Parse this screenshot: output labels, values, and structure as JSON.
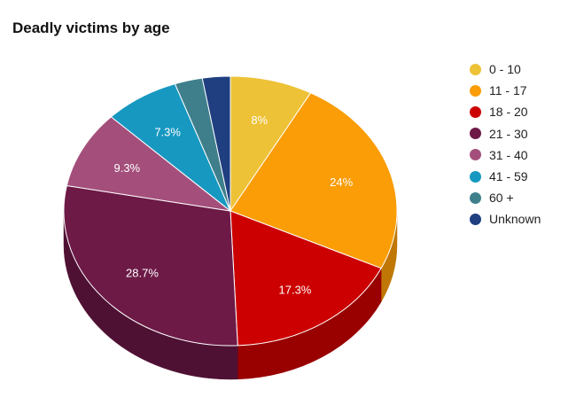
{
  "chart_data": {
    "type": "pie",
    "title": "Deadly victims by age",
    "is_3d": true,
    "legend_position": "right",
    "categories": [
      "0 - 10",
      "11 - 17",
      "18 - 20",
      "21 - 30",
      "31 - 40",
      "41 - 59",
      "60 +",
      "Unknown"
    ],
    "values": [
      8,
      24,
      17.3,
      28.7,
      9.3,
      7.3,
      2.7,
      2.7
    ],
    "data_labels": [
      "8%",
      "24%",
      "17.3%",
      "28.7%",
      "9.3%",
      "7.3%",
      "",
      ""
    ],
    "colors": [
      "#EEC236",
      "#FA9D06",
      "#CC0000",
      "#6D1A47",
      "#A44F7B",
      "#1798C1",
      "#3F7F8C",
      "#1F3F80"
    ],
    "side_colors": [
      "#B38E22",
      "#C07705",
      "#990000",
      "#4F1133",
      "#7A3A5B",
      "#117290",
      "#2E5F69",
      "#162E5E"
    ]
  }
}
